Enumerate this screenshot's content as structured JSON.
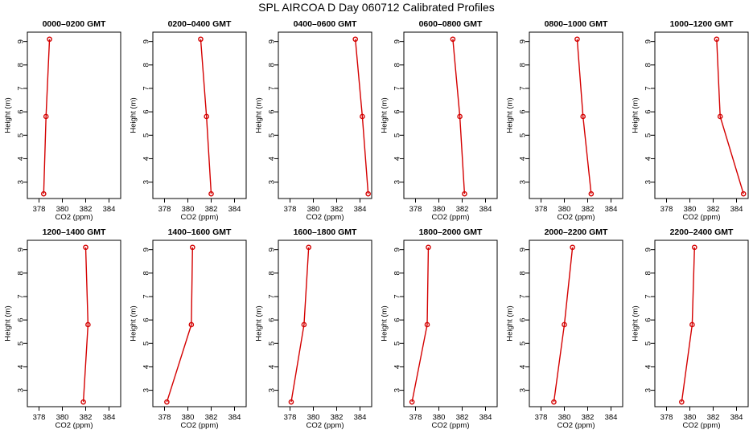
{
  "title": "SPL AIRCOA D  Day 060712  Calibrated Profiles",
  "colors": {
    "series": "#d40000",
    "axis": "#000000"
  },
  "chart_data": [
    {
      "type": "line",
      "title": "0000–0200 GMT",
      "xlabel": "CO2 (ppm)",
      "ylabel": "Height (m)",
      "xlim": [
        377,
        385
      ],
      "ylim": [
        2.3,
        9.4
      ],
      "xticks": [
        "378",
        "380",
        "382",
        "384"
      ],
      "yticks": [
        "3",
        "4",
        "5",
        "6",
        "7",
        "8",
        "9"
      ],
      "x": [
        378.9,
        378.6,
        378.4
      ],
      "y": [
        9.1,
        5.8,
        2.5
      ]
    },
    {
      "type": "line",
      "title": "0200–0400 GMT",
      "xlabel": "CO2 (ppm)",
      "ylabel": "Height (m)",
      "xlim": [
        377,
        385
      ],
      "ylim": [
        2.3,
        9.4
      ],
      "xticks": [
        "378",
        "380",
        "382",
        "384"
      ],
      "yticks": [
        "3",
        "4",
        "5",
        "6",
        "7",
        "8",
        "9"
      ],
      "x": [
        381.1,
        381.6,
        382.0
      ],
      "y": [
        9.1,
        5.8,
        2.5
      ]
    },
    {
      "type": "line",
      "title": "0400–0600 GMT",
      "xlabel": "CO2 (ppm)",
      "ylabel": "Height (m)",
      "xlim": [
        377,
        385
      ],
      "ylim": [
        2.3,
        9.4
      ],
      "xticks": [
        "378",
        "380",
        "382",
        "384"
      ],
      "yticks": [
        "3",
        "4",
        "5",
        "6",
        "7",
        "8",
        "9"
      ],
      "x": [
        383.6,
        384.2,
        384.7
      ],
      "y": [
        9.1,
        5.8,
        2.5
      ]
    },
    {
      "type": "line",
      "title": "0600–0800 GMT",
      "xlabel": "CO2 (ppm)",
      "ylabel": "Height (m)",
      "xlim": [
        377,
        385
      ],
      "ylim": [
        2.3,
        9.4
      ],
      "xticks": [
        "378",
        "380",
        "382",
        "384"
      ],
      "yticks": [
        "3",
        "4",
        "5",
        "6",
        "7",
        "8",
        "9"
      ],
      "x": [
        381.2,
        381.8,
        382.2
      ],
      "y": [
        9.1,
        5.8,
        2.5
      ]
    },
    {
      "type": "line",
      "title": "0800–1000 GMT",
      "xlabel": "CO2 (ppm)",
      "ylabel": "Height (m)",
      "xlim": [
        377,
        385
      ],
      "ylim": [
        2.3,
        9.4
      ],
      "xticks": [
        "378",
        "380",
        "382",
        "384"
      ],
      "yticks": [
        "3",
        "4",
        "5",
        "6",
        "7",
        "8",
        "9"
      ],
      "x": [
        381.1,
        381.6,
        382.3
      ],
      "y": [
        9.1,
        5.8,
        2.5
      ]
    },
    {
      "type": "line",
      "title": "1000–1200 GMT",
      "xlabel": "CO2 (ppm)",
      "ylabel": "Height (m)",
      "xlim": [
        377,
        385
      ],
      "ylim": [
        2.3,
        9.4
      ],
      "xticks": [
        "378",
        "380",
        "382",
        "384"
      ],
      "yticks": [
        "3",
        "4",
        "5",
        "6",
        "7",
        "8",
        "9"
      ],
      "x": [
        382.3,
        382.6,
        384.6
      ],
      "y": [
        9.1,
        5.8,
        2.5
      ]
    },
    {
      "type": "line",
      "title": "1200–1400 GMT",
      "xlabel": "CO2 (ppm)",
      "ylabel": "Height (m)",
      "xlim": [
        377,
        385
      ],
      "ylim": [
        2.3,
        9.4
      ],
      "xticks": [
        "378",
        "380",
        "382",
        "384"
      ],
      "yticks": [
        "3",
        "4",
        "5",
        "6",
        "7",
        "8",
        "9"
      ],
      "x": [
        382.0,
        382.2,
        381.8
      ],
      "y": [
        9.1,
        5.8,
        2.5
      ]
    },
    {
      "type": "line",
      "title": "1400–1600 GMT",
      "xlabel": "CO2 (ppm)",
      "ylabel": "Height (m)",
      "xlim": [
        377,
        385
      ],
      "ylim": [
        2.3,
        9.4
      ],
      "xticks": [
        "378",
        "380",
        "382",
        "384"
      ],
      "yticks": [
        "3",
        "4",
        "5",
        "6",
        "7",
        "8",
        "9"
      ],
      "x": [
        380.4,
        380.3,
        378.2
      ],
      "y": [
        9.1,
        5.8,
        2.5
      ]
    },
    {
      "type": "line",
      "title": "1600–1800 GMT",
      "xlabel": "CO2 (ppm)",
      "ylabel": "Height (m)",
      "xlim": [
        377,
        385
      ],
      "ylim": [
        2.3,
        9.4
      ],
      "xticks": [
        "378",
        "380",
        "382",
        "384"
      ],
      "yticks": [
        "3",
        "4",
        "5",
        "6",
        "7",
        "8",
        "9"
      ],
      "x": [
        379.6,
        379.2,
        378.1
      ],
      "y": [
        9.1,
        5.8,
        2.5
      ]
    },
    {
      "type": "line",
      "title": "1800–2000 GMT",
      "xlabel": "CO2 (ppm)",
      "ylabel": "Height (m)",
      "xlim": [
        377,
        385
      ],
      "ylim": [
        2.3,
        9.4
      ],
      "xticks": [
        "378",
        "380",
        "382",
        "384"
      ],
      "yticks": [
        "3",
        "4",
        "5",
        "6",
        "7",
        "8",
        "9"
      ],
      "x": [
        379.1,
        379.0,
        377.7
      ],
      "y": [
        9.1,
        5.8,
        2.5
      ]
    },
    {
      "type": "line",
      "title": "2000–2200 GMT",
      "xlabel": "CO2 (ppm)",
      "ylabel": "Height (m)",
      "xlim": [
        377,
        385
      ],
      "ylim": [
        2.3,
        9.4
      ],
      "xticks": [
        "378",
        "380",
        "382",
        "384"
      ],
      "yticks": [
        "3",
        "4",
        "5",
        "6",
        "7",
        "8",
        "9"
      ],
      "x": [
        380.7,
        380.0,
        379.1
      ],
      "y": [
        9.1,
        5.8,
        2.5
      ]
    },
    {
      "type": "line",
      "title": "2200–2400 GMT",
      "xlabel": "CO2 (ppm)",
      "ylabel": "Height (m)",
      "xlim": [
        377,
        385
      ],
      "ylim": [
        2.3,
        9.4
      ],
      "xticks": [
        "378",
        "380",
        "382",
        "384"
      ],
      "yticks": [
        "3",
        "4",
        "5",
        "6",
        "7",
        "8",
        "9"
      ],
      "x": [
        380.4,
        380.2,
        379.3
      ],
      "y": [
        9.1,
        5.8,
        2.5
      ]
    }
  ]
}
